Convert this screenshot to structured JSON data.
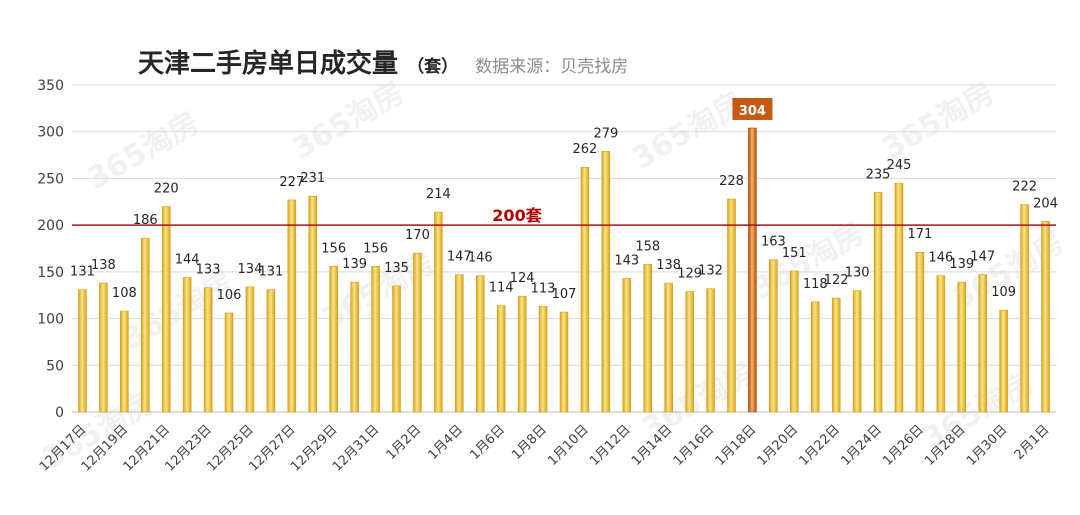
{
  "chart_data": {
    "type": "bar",
    "title": "天津二手房单日成交量",
    "unit_label": "（套）",
    "source": "数据来源：贝壳找房",
    "ylim": [
      0,
      350
    ],
    "y_ticks": [
      0,
      50,
      100,
      150,
      200,
      250,
      300,
      350
    ],
    "grid": true,
    "categories": [
      "12月17日",
      "12月18日",
      "12月19日",
      "12月20日",
      "12月21日",
      "12月22日",
      "12月23日",
      "12月24日",
      "12月25日",
      "12月26日",
      "12月27日",
      "12月28日",
      "12月29日",
      "12月30日",
      "12月31日",
      "1月1日",
      "1月2日",
      "1月3日",
      "1月4日",
      "1月5日",
      "1月6日",
      "1月7日",
      "1月8日",
      "1月9日",
      "1月10日",
      "1月11日",
      "1月12日",
      "1月13日",
      "1月14日",
      "1月15日",
      "1月16日",
      "1月17日",
      "1月18日",
      "1月19日",
      "1月20日",
      "1月21日",
      "1月22日",
      "1月23日",
      "1月24日",
      "1月25日",
      "1月26日",
      "1月27日",
      "1月28日",
      "1月29日",
      "1月30日",
      "1月31日",
      "2月1日"
    ],
    "x_tick_labels_shown": [
      "12月17日",
      "12月19日",
      "12月21日",
      "12月23日",
      "12月25日",
      "12月27日",
      "12月29日",
      "12月31日",
      "1月2日",
      "1月4日",
      "1月6日",
      "1月8日",
      "1月10日",
      "1月12日",
      "1月14日",
      "1月16日",
      "1月18日",
      "1月20日",
      "1月22日",
      "1月24日",
      "1月26日",
      "1月28日",
      "1月30日",
      "2月1日"
    ],
    "values": [
      131,
      138,
      108,
      186,
      220,
      144,
      133,
      106,
      134,
      131,
      227,
      231,
      156,
      139,
      156,
      135,
      170,
      214,
      147,
      146,
      114,
      124,
      113,
      107,
      262,
      279,
      143,
      158,
      138,
      129,
      132,
      228,
      304,
      163,
      151,
      118,
      122,
      130,
      235,
      245,
      171,
      146,
      139,
      147,
      109,
      222,
      204
    ],
    "highlight_category": "1月18日",
    "reference_line": {
      "value": 200,
      "label": "200套",
      "color": "#a31515"
    },
    "colors": {
      "bar": "#f2c12e",
      "bar_highlight": "#c55a11",
      "grid": "#d9d9d9"
    }
  },
  "watermark": {
    "text": "365淘房"
  }
}
